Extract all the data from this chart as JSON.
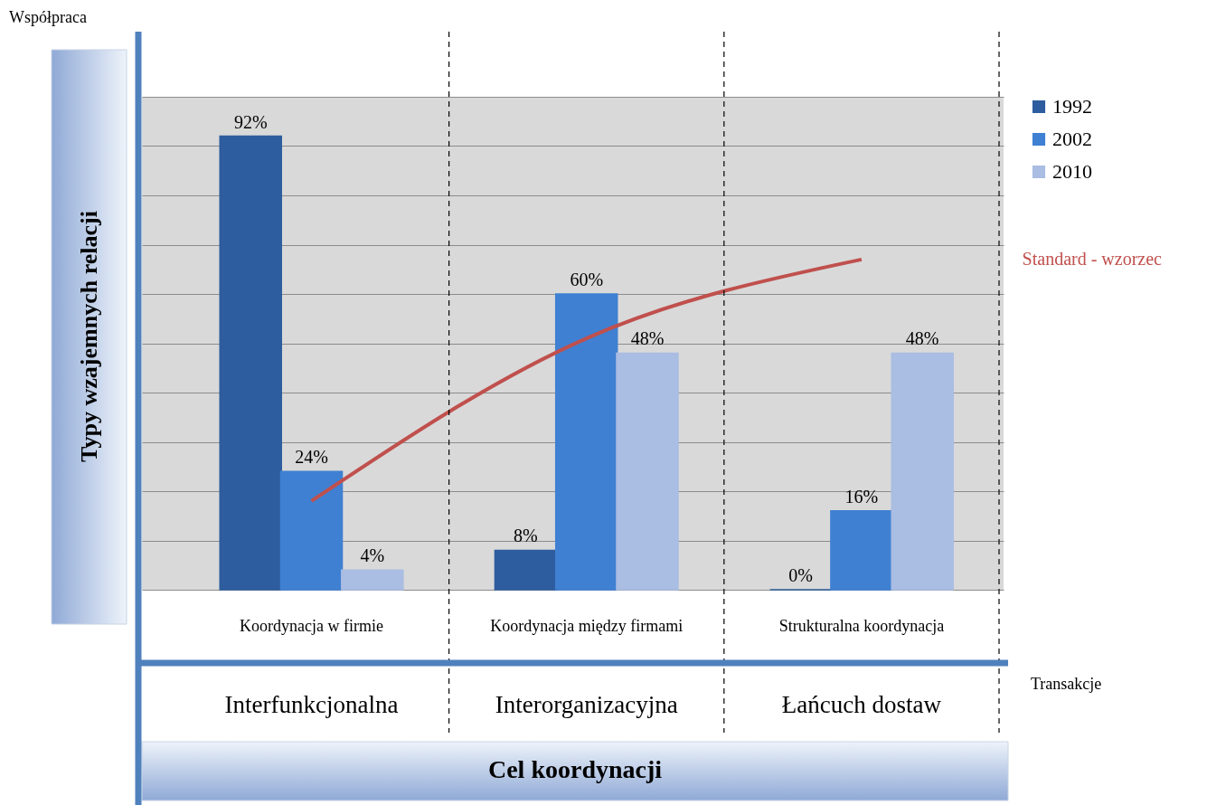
{
  "chart_data": {
    "type": "bar",
    "ylabel": "Typy wzajemnych relacji",
    "xlabel": "Cel koordynacji",
    "categories": [
      "Koordynacja w firmie",
      "Koordynacja między firmami",
      "Strukturalna koordynacja"
    ],
    "series": [
      {
        "name": "1992",
        "color": "#2e5d9f",
        "values": [
          92,
          8,
          0
        ],
        "value_labels": [
          "92%",
          "8%",
          "0%"
        ]
      },
      {
        "name": "2002",
        "color": "#3f80d2",
        "values": [
          24,
          60,
          16
        ],
        "value_labels": [
          "24%",
          "60%",
          "16%"
        ]
      },
      {
        "name": "2010",
        "color": "#aabde2",
        "values": [
          4,
          48,
          48
        ],
        "value_labels": [
          "4%",
          "48%",
          "48%"
        ]
      },
      {
        "name": "Standard - wzorzec",
        "type": "line",
        "color": "#c0504d",
        "values": [
          18,
          51,
          67
        ]
      }
    ],
    "ylim": [
      0,
      100
    ],
    "yticks": [
      {
        "value": 0,
        "label": null
      },
      {
        "value": 10,
        "label": null
      },
      {
        "value": 20,
        "label": null
      },
      {
        "value": 30,
        "label": null
      },
      {
        "value": 40,
        "label": null
      },
      {
        "value": 50,
        "label": null
      },
      {
        "value": 60,
        "label": null
      },
      {
        "value": 70,
        "label": null
      },
      {
        "value": 80,
        "label": null
      },
      {
        "value": 90,
        "label": null
      },
      {
        "value": 100,
        "label": null
      }
    ],
    "tick_labels": false,
    "grid": "y",
    "legend": "top right",
    "annotations": [
      "Współpraca",
      "Transakcje",
      "Interfunkcjonalna",
      "Interorganizacyjna",
      "Łańcuch dostaw"
    ]
  }
}
